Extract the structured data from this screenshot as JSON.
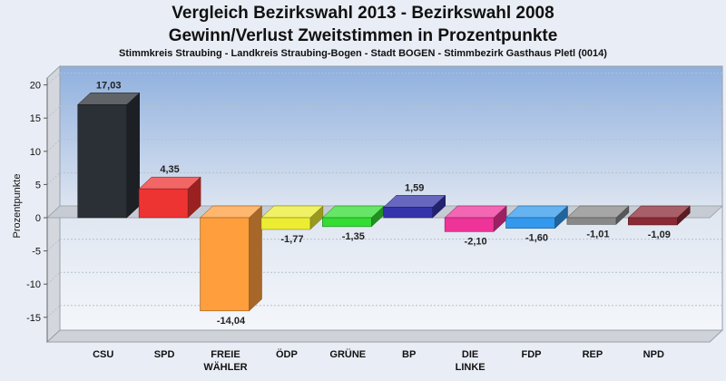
{
  "chart_data": {
    "type": "bar",
    "title": "Vergleich Bezirkswahl 2013 - Bezirkswahl 2008",
    "title2": "Gewinn/Verlust Zweitstimmen in Prozentpunkte",
    "subtitle": "Stimmkreis Straubing - Landkreis Straubing-Bogen - Stadt BOGEN - Stimmbezirk Gasthaus Pletl (0014)",
    "ylabel": "Prozentpunkte",
    "xlabel": "",
    "ylim": [
      -19,
      22
    ],
    "yticks": [
      20,
      15,
      10,
      5,
      0,
      -5,
      -10,
      -15
    ],
    "categories": [
      "CSU",
      "SPD",
      "FREIE WÄHLER",
      "ÖDP",
      "GRÜNE",
      "BP",
      "DIE LINKE",
      "FDP",
      "REP",
      "NPD"
    ],
    "category_lines": [
      [
        "CSU"
      ],
      [
        "SPD"
      ],
      [
        "FREIE",
        "WÄHLER"
      ],
      [
        "ÖDP"
      ],
      [
        "GRÜNE"
      ],
      [
        "BP"
      ],
      [
        "DIE",
        "LINKE"
      ],
      [
        "FDP"
      ],
      [
        "REP"
      ],
      [
        "NPD"
      ]
    ],
    "values": [
      17.03,
      4.35,
      -14.04,
      -1.77,
      -1.35,
      1.59,
      -2.1,
      -1.6,
      -1.01,
      -1.09
    ],
    "value_labels": [
      "17,03",
      "4,35",
      "-14,04",
      "-1,77",
      "-1,35",
      "1,59",
      "-2,10",
      "-1,60",
      "-1,01",
      "-1,09"
    ],
    "colors": [
      "#2b2f36",
      "#ee3333",
      "#ff9e3d",
      "#ecec33",
      "#33dd33",
      "#3434aa",
      "#ee3399",
      "#3399ee",
      "#888888",
      "#8b2a35"
    ],
    "grid": true,
    "legend": "none"
  }
}
